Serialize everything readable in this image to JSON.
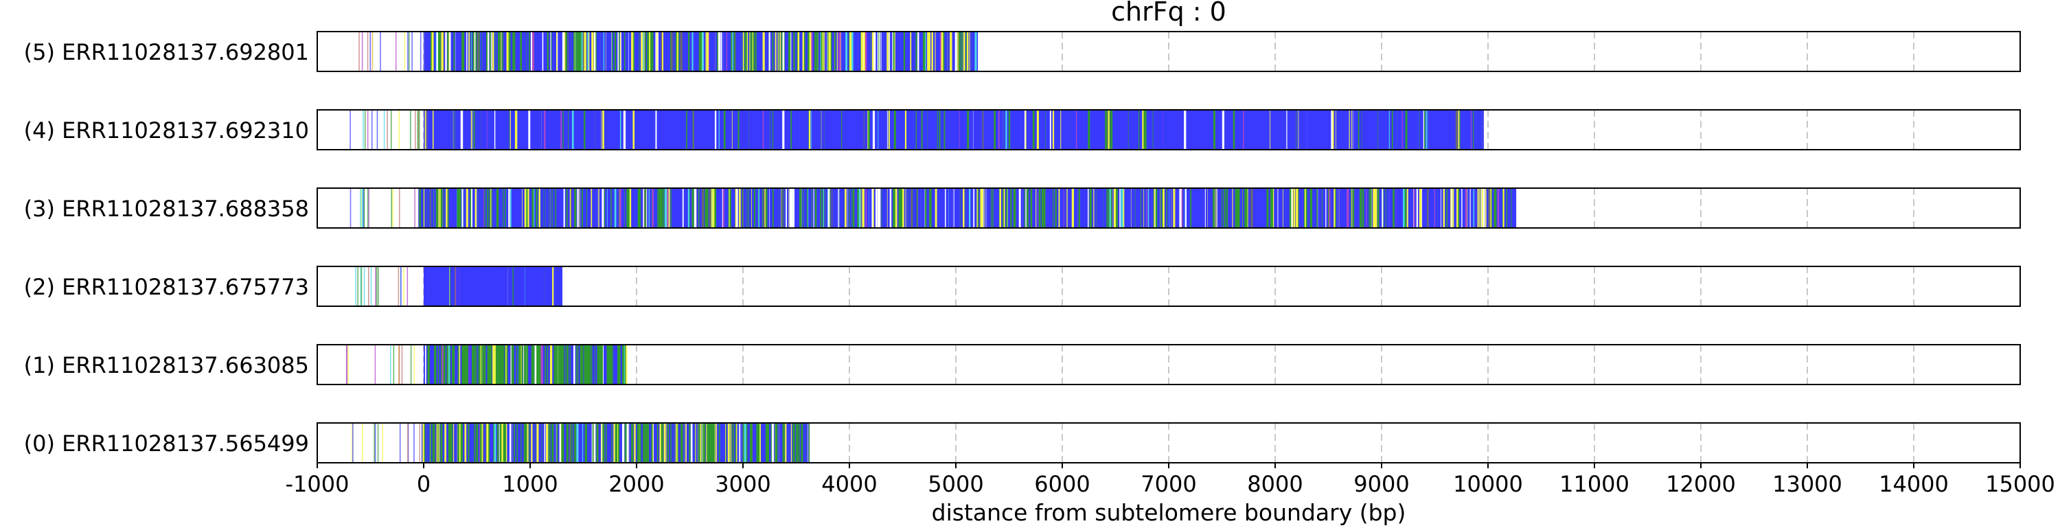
{
  "chart_data": {
    "type": "bar",
    "title": "chrFq : 0",
    "xlabel": "distance from subtelomere boundary (bp)",
    "ylabel": "",
    "xlim": [
      -1000,
      15000
    ],
    "xticks": [
      -1000,
      0,
      1000,
      2000,
      3000,
      4000,
      5000,
      6000,
      7000,
      8000,
      9000,
      10000,
      11000,
      12000,
      13000,
      14000,
      15000
    ],
    "grid": "vertical dashed at major ticks",
    "colors": {
      "blue": "#3a3aff",
      "green": "#2f9a2f",
      "yellow": "#f5f542",
      "purple": "#b046c7",
      "cyan": "#4ad6e6",
      "white": "#ffffff"
    },
    "reads": [
      {
        "label": "(5) ERR11028137.692801",
        "start": -1000,
        "end": 5200,
        "dense_start": 0,
        "blue_weight": 0.45,
        "green_weight": 0.25,
        "yellow_weight": 0.15
      },
      {
        "label": "(4) ERR11028137.692310",
        "start": -1000,
        "end": 9950,
        "dense_start": 0,
        "blue_weight": 0.85,
        "green_weight": 0.07,
        "yellow_weight": 0.03
      },
      {
        "label": "(3) ERR11028137.688358",
        "start": -1000,
        "end": 10250,
        "dense_start": -50,
        "blue_weight": 0.55,
        "green_weight": 0.22,
        "yellow_weight": 0.1
      },
      {
        "label": "(2) ERR11028137.675773",
        "start": -1000,
        "end": 1300,
        "dense_start": 0,
        "blue_weight": 0.9,
        "green_weight": 0.03,
        "yellow_weight": 0.02
      },
      {
        "label": "(1) ERR11028137.663085",
        "start": -1000,
        "end": 1900,
        "dense_start": 0,
        "blue_weight": 0.2,
        "green_weight": 0.65,
        "yellow_weight": 0.05
      },
      {
        "label": "(0) ERR11028137.565499",
        "start": -1000,
        "end": 3620,
        "dense_start": -20,
        "blue_weight": 0.35,
        "green_weight": 0.45,
        "yellow_weight": 0.12
      }
    ]
  }
}
